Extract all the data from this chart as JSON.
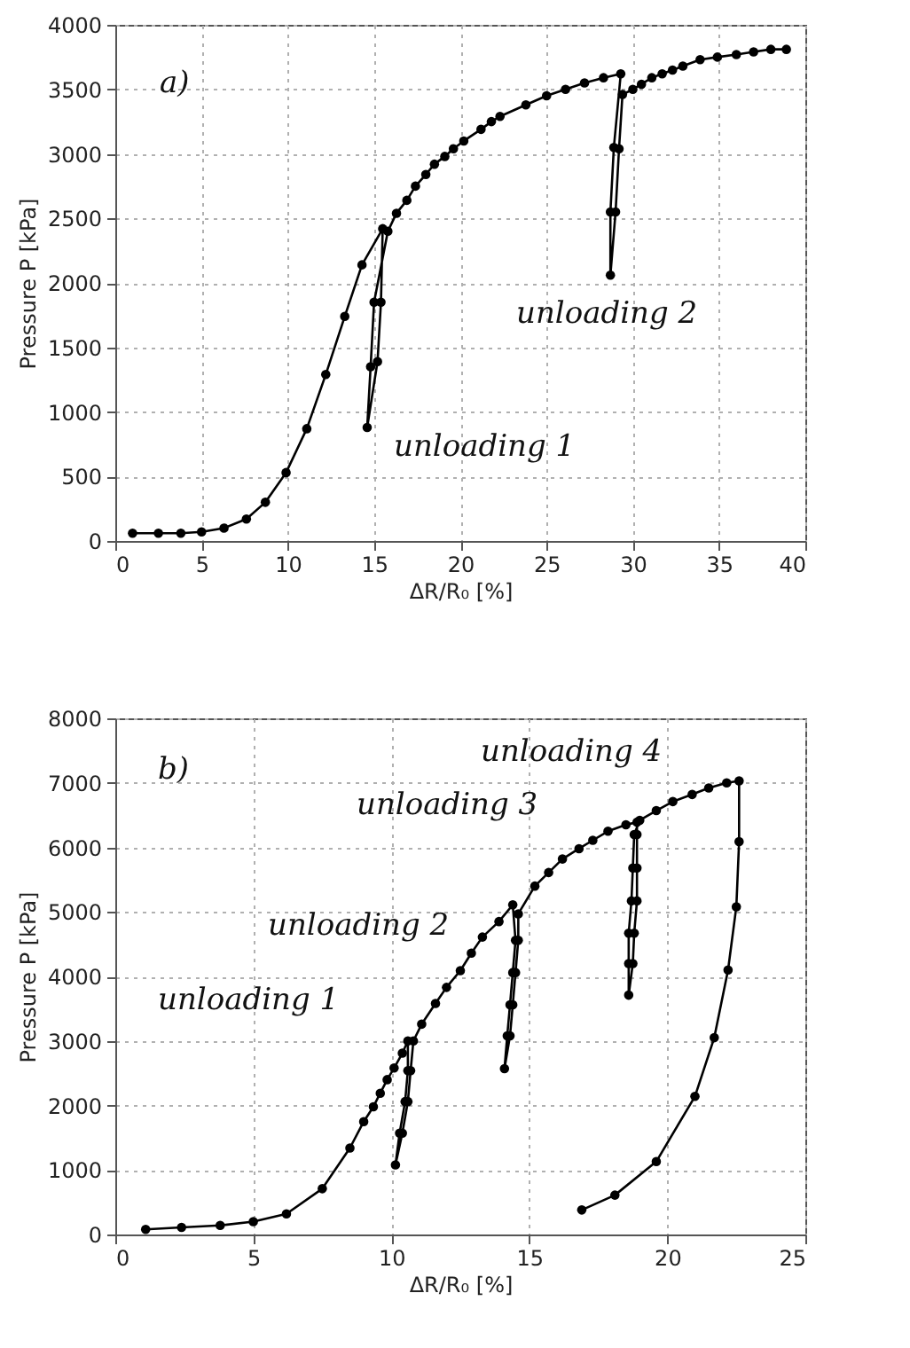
{
  "chart_data": [
    {
      "type": "line",
      "xlabel": "ΔR/R₀ [%]",
      "ylabel": "Pressure P [kPa]",
      "xlim": [
        0,
        40
      ],
      "xticks": [
        0,
        5,
        10,
        15,
        20,
        25,
        30,
        35,
        40
      ],
      "ylim": [
        0,
        4000
      ],
      "yticks": [
        0,
        500,
        1000,
        1500,
        2000,
        2500,
        3000,
        3500,
        4000
      ],
      "grid": true,
      "marker": "circle",
      "line_style": "solid",
      "series": [
        {
          "color": "#000000",
          "x": [
            1.0,
            2.5,
            3.8,
            5.0,
            6.3,
            7.6,
            8.7,
            9.9,
            11.1,
            12.2,
            13.3,
            14.3,
            15.5,
            15.4,
            15.2,
            14.6,
            14.8,
            15.0,
            15.8,
            16.3,
            16.9,
            17.4,
            18.0,
            18.5,
            19.1,
            19.6,
            20.2,
            21.2,
            21.8,
            22.3,
            23.8,
            25.0,
            26.1,
            27.2,
            28.3,
            29.3,
            28.9,
            28.7,
            28.7,
            29.0,
            29.2,
            29.4,
            30.0,
            30.5,
            31.1,
            31.7,
            32.3,
            32.9,
            33.9,
            34.9,
            36.0,
            37.0,
            38.0,
            38.9
          ],
          "values": [
            60,
            60,
            60,
            70,
            100,
            170,
            300,
            530,
            870,
            1290,
            1740,
            2140,
            2420,
            1850,
            1390,
            880,
            1350,
            1850,
            2400,
            2540,
            2640,
            2750,
            2840,
            2920,
            2980,
            3040,
            3100,
            3190,
            3250,
            3290,
            3380,
            3450,
            3500,
            3550,
            3590,
            3620,
            3050,
            2550,
            2060,
            2550,
            3040,
            3460,
            3500,
            3540,
            3590,
            3620,
            3650,
            3680,
            3730,
            3750,
            3770,
            3790,
            3810,
            3810
          ]
        }
      ],
      "annotations": [
        "a)",
        "unloading 1",
        "unloading 2"
      ]
    },
    {
      "type": "line",
      "xlabel": "ΔR/R₀ [%]",
      "ylabel": "Pressure P [kPa]",
      "xlim": [
        0,
        25
      ],
      "xticks": [
        0,
        5,
        10,
        15,
        20,
        25
      ],
      "ylim": [
        0,
        8000
      ],
      "yticks": [
        0,
        1000,
        2000,
        3000,
        4000,
        5000,
        6000,
        7000,
        8000
      ],
      "grid": true,
      "marker": "circle",
      "line_style": "solid",
      "series": [
        {
          "color": "#000000",
          "x": [
            1.1,
            2.4,
            3.8,
            5.0,
            6.2,
            7.5,
            8.5,
            9.0,
            9.35,
            9.6,
            9.85,
            10.1,
            10.4,
            10.6,
            10.6,
            10.5,
            10.3,
            10.15,
            10.4,
            10.6,
            10.7,
            10.8,
            11.1,
            11.6,
            12.0,
            12.5,
            12.9,
            13.3,
            13.9,
            14.4,
            14.5,
            14.4,
            14.3,
            14.2,
            14.1,
            14.3,
            14.4,
            14.5,
            14.6,
            14.6,
            15.2,
            15.7,
            16.2,
            16.8,
            17.3,
            17.85,
            18.5,
            18.9,
            18.9,
            18.9,
            18.9,
            18.8,
            18.75,
            18.6,
            18.6,
            18.6,
            18.7,
            18.75,
            18.8,
            19.0,
            19.6,
            20.2,
            20.9,
            21.5,
            22.15,
            22.6,
            22.6,
            22.5,
            22.2,
            21.7,
            21.0,
            19.6,
            18.1,
            16.9
          ],
          "values": [
            80,
            110,
            140,
            200,
            320,
            710,
            1340,
            1750,
            1980,
            2190,
            2400,
            2580,
            2810,
            3000,
            2540,
            2060,
            1570,
            1080,
            1570,
            2060,
            2540,
            3000,
            3260,
            3580,
            3830,
            4090,
            4360,
            4610,
            4850,
            5110,
            4560,
            4060,
            3560,
            3080,
            2570,
            3080,
            3560,
            4060,
            4560,
            4970,
            5400,
            5610,
            5820,
            5980,
            6110,
            6250,
            6350,
            6390,
            6200,
            5680,
            5170,
            4670,
            4200,
            3710,
            4200,
            4670,
            5170,
            5680,
            6200,
            6420,
            6570,
            6710,
            6820,
            6920,
            7000,
            7030,
            6090,
            5080,
            4100,
            3050,
            2140,
            1130,
            610,
            380
          ]
        }
      ],
      "annotations": [
        "b)",
        "unloading 1",
        "unloading 2",
        "unloading 3",
        "unloading 4"
      ]
    }
  ]
}
